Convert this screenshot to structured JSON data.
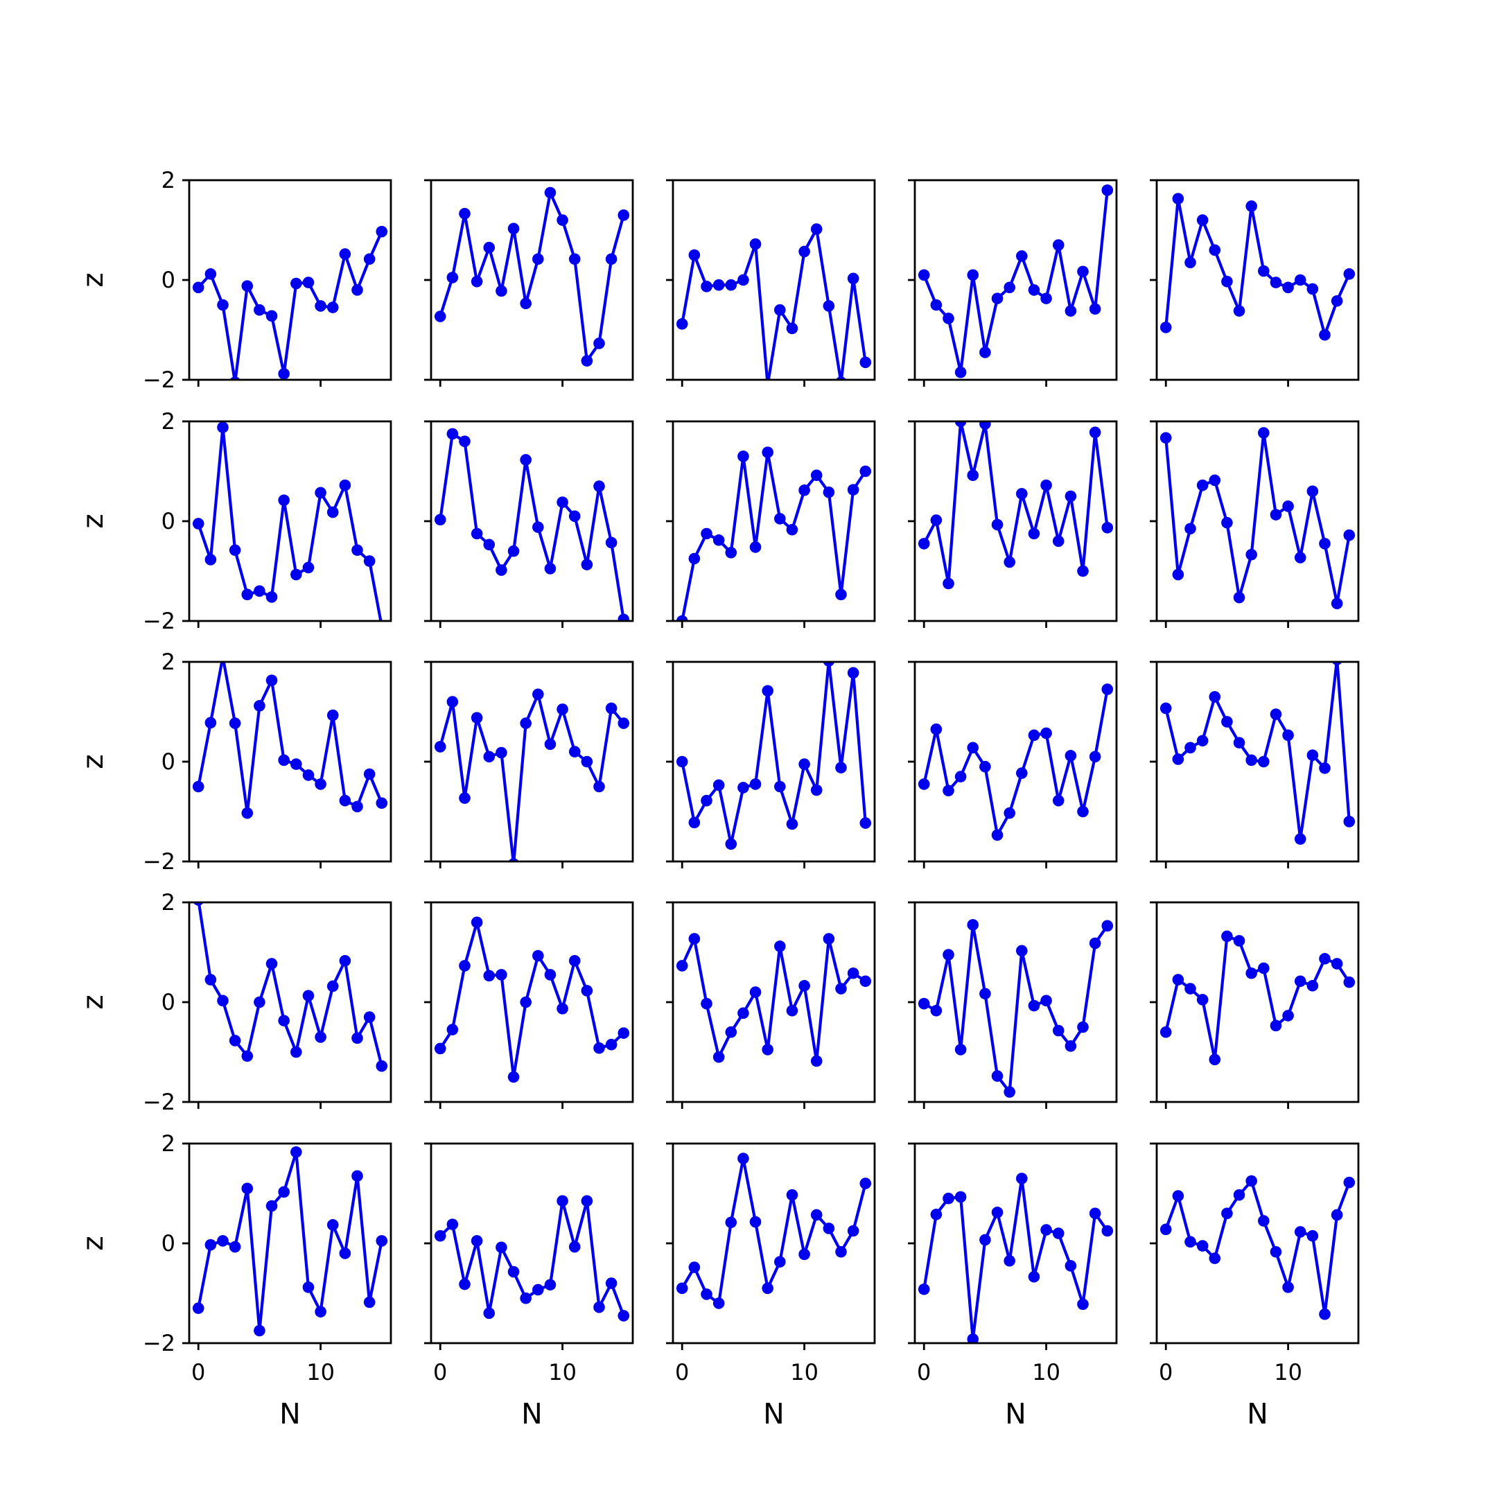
{
  "figure": {
    "background": "#ffffff",
    "grid": false
  },
  "style": {
    "line_color": "#0000ee",
    "axis_color": "#000000"
  },
  "chart_data": {
    "type": "line",
    "layout": "5x5 grid of small multiples, shared x and y axes",
    "xlabel": "N",
    "ylabel": "z",
    "xlim": [
      -0.75,
      15.75
    ],
    "ylim": [
      -2,
      2
    ],
    "xticks": [
      0,
      10
    ],
    "yticks": [
      -2,
      0,
      2
    ],
    "x": [
      0,
      1,
      2,
      3,
      4,
      5,
      6,
      7,
      8,
      9,
      10,
      11,
      12,
      13,
      14,
      15
    ],
    "panels": [
      {
        "row": 1,
        "col": 1,
        "values": [
          -0.15,
          0.12,
          -0.5,
          -2.05,
          -0.12,
          -0.6,
          -0.72,
          -1.88,
          -0.07,
          -0.05,
          -0.52,
          -0.55,
          0.52,
          -0.2,
          0.42,
          0.97
        ]
      },
      {
        "row": 1,
        "col": 2,
        "values": [
          -0.73,
          0.05,
          1.33,
          -0.03,
          0.65,
          -0.22,
          1.03,
          -0.47,
          0.42,
          1.75,
          1.2,
          0.42,
          -1.62,
          -1.27,
          0.42,
          1.3
        ]
      },
      {
        "row": 1,
        "col": 3,
        "values": [
          -0.88,
          0.5,
          -0.13,
          -0.1,
          -0.1,
          0.0,
          0.72,
          -2.1,
          -0.6,
          -0.97,
          0.57,
          1.02,
          -0.52,
          -2.05,
          0.03,
          -1.65
        ]
      },
      {
        "row": 1,
        "col": 4,
        "values": [
          0.1,
          -0.5,
          -0.77,
          -1.85,
          0.1,
          -1.45,
          -0.37,
          -0.15,
          0.48,
          -0.2,
          -0.37,
          0.7,
          -0.62,
          0.17,
          -0.58,
          1.8
        ]
      },
      {
        "row": 1,
        "col": 5,
        "values": [
          -0.95,
          1.63,
          0.35,
          1.2,
          0.6,
          -0.03,
          -0.62,
          1.48,
          0.18,
          -0.05,
          -0.15,
          0.0,
          -0.18,
          -1.1,
          -0.42,
          0.12
        ]
      },
      {
        "row": 2,
        "col": 1,
        "values": [
          -0.05,
          -0.77,
          1.88,
          -0.58,
          -1.47,
          -1.4,
          -1.52,
          0.42,
          -1.07,
          -0.93,
          0.57,
          0.18,
          0.72,
          -0.58,
          -0.8,
          -2.1
        ]
      },
      {
        "row": 2,
        "col": 2,
        "values": [
          0.03,
          1.75,
          1.6,
          -0.25,
          -0.47,
          -0.98,
          -0.6,
          1.23,
          -0.12,
          -0.95,
          0.38,
          0.1,
          -0.87,
          0.7,
          -0.43,
          -1.97
        ]
      },
      {
        "row": 2,
        "col": 3,
        "values": [
          -2.0,
          -0.75,
          -0.25,
          -0.38,
          -0.63,
          1.3,
          -0.52,
          1.38,
          0.05,
          -0.17,
          0.62,
          0.92,
          0.58,
          -1.47,
          0.63,
          1.0
        ]
      },
      {
        "row": 2,
        "col": 4,
        "values": [
          -0.45,
          0.02,
          -1.25,
          2.0,
          0.92,
          1.95,
          -0.07,
          -0.82,
          0.55,
          -0.25,
          0.72,
          -0.4,
          0.5,
          -1.0,
          1.78,
          -0.13
        ]
      },
      {
        "row": 2,
        "col": 5,
        "values": [
          1.67,
          -1.07,
          -0.15,
          0.72,
          0.82,
          -0.03,
          -1.53,
          -0.67,
          1.77,
          0.13,
          0.3,
          -0.73,
          0.6,
          -0.45,
          -1.65,
          -0.28
        ]
      },
      {
        "row": 3,
        "col": 1,
        "values": [
          -0.5,
          0.78,
          2.1,
          0.77,
          -1.03,
          1.12,
          1.63,
          0.03,
          -0.05,
          -0.27,
          -0.45,
          0.93,
          -0.78,
          -0.9,
          -0.25,
          -0.83
        ]
      },
      {
        "row": 3,
        "col": 2,
        "values": [
          0.3,
          1.2,
          -0.73,
          0.88,
          0.1,
          0.18,
          -2.05,
          0.77,
          1.35,
          0.35,
          1.05,
          0.2,
          0.0,
          -0.5,
          1.07,
          0.77
        ]
      },
      {
        "row": 3,
        "col": 3,
        "values": [
          0.0,
          -1.22,
          -0.78,
          -0.47,
          -1.65,
          -0.52,
          -0.45,
          1.42,
          -0.5,
          -1.25,
          -0.05,
          -0.57,
          2.02,
          -0.12,
          1.78,
          -1.23
        ]
      },
      {
        "row": 3,
        "col": 4,
        "values": [
          -0.45,
          0.65,
          -0.58,
          -0.3,
          0.28,
          -0.1,
          -1.47,
          -1.03,
          -0.23,
          0.53,
          0.57,
          -0.78,
          0.12,
          -1.0,
          0.1,
          1.45
        ]
      },
      {
        "row": 3,
        "col": 5,
        "values": [
          1.07,
          0.05,
          0.28,
          0.42,
          1.3,
          0.8,
          0.38,
          0.03,
          0.0,
          0.95,
          0.53,
          -1.55,
          0.13,
          -0.13,
          2.05,
          -1.2
        ]
      },
      {
        "row": 4,
        "col": 1,
        "values": [
          2.05,
          0.45,
          0.03,
          -0.77,
          -1.08,
          0.0,
          0.77,
          -0.37,
          -1.0,
          0.13,
          -0.7,
          0.32,
          0.83,
          -0.72,
          -0.3,
          -1.28
        ]
      },
      {
        "row": 4,
        "col": 2,
        "values": [
          -0.93,
          -0.55,
          0.73,
          1.6,
          0.53,
          0.55,
          -1.5,
          0.0,
          0.93,
          0.55,
          -0.13,
          0.83,
          0.23,
          -0.92,
          -0.85,
          -0.62
        ]
      },
      {
        "row": 4,
        "col": 3,
        "values": [
          0.73,
          1.27,
          -0.03,
          -1.1,
          -0.6,
          -0.22,
          0.2,
          -0.95,
          1.12,
          -0.17,
          0.33,
          -1.18,
          1.27,
          0.27,
          0.58,
          0.42
        ]
      },
      {
        "row": 4,
        "col": 4,
        "values": [
          -0.03,
          -0.17,
          0.95,
          -0.95,
          1.55,
          0.17,
          -1.48,
          -1.8,
          1.03,
          -0.07,
          0.03,
          -0.57,
          -0.88,
          -0.5,
          1.18,
          1.53
        ]
      },
      {
        "row": 4,
        "col": 5,
        "values": [
          -0.6,
          0.45,
          0.27,
          0.05,
          -1.15,
          1.32,
          1.23,
          0.58,
          0.68,
          -0.47,
          -0.27,
          0.42,
          0.33,
          0.87,
          0.77,
          0.4
        ]
      },
      {
        "row": 5,
        "col": 1,
        "values": [
          -1.3,
          -0.03,
          0.05,
          -0.07,
          1.1,
          -1.75,
          0.75,
          1.03,
          1.83,
          -0.88,
          -1.37,
          0.37,
          -0.2,
          1.35,
          -1.18,
          0.05
        ]
      },
      {
        "row": 5,
        "col": 2,
        "values": [
          0.15,
          0.38,
          -0.82,
          0.05,
          -1.4,
          -0.08,
          -0.57,
          -1.1,
          -0.93,
          -0.83,
          0.85,
          -0.07,
          0.85,
          -1.28,
          -0.8,
          -1.45
        ]
      },
      {
        "row": 5,
        "col": 3,
        "values": [
          -0.9,
          -0.48,
          -1.02,
          -1.2,
          0.42,
          1.7,
          0.43,
          -0.9,
          -0.37,
          0.97,
          -0.22,
          0.57,
          0.3,
          -0.17,
          0.25,
          1.2
        ]
      },
      {
        "row": 5,
        "col": 4,
        "values": [
          -0.92,
          0.58,
          0.9,
          0.93,
          -1.92,
          0.07,
          0.62,
          -0.35,
          1.3,
          -0.67,
          0.27,
          0.2,
          -0.45,
          -1.22,
          0.6,
          0.25
        ]
      },
      {
        "row": 5,
        "col": 5,
        "values": [
          0.28,
          0.95,
          0.03,
          -0.05,
          -0.3,
          0.6,
          0.97,
          1.25,
          0.45,
          -0.17,
          -0.88,
          0.23,
          0.15,
          -1.42,
          0.57,
          1.22
        ]
      }
    ]
  }
}
